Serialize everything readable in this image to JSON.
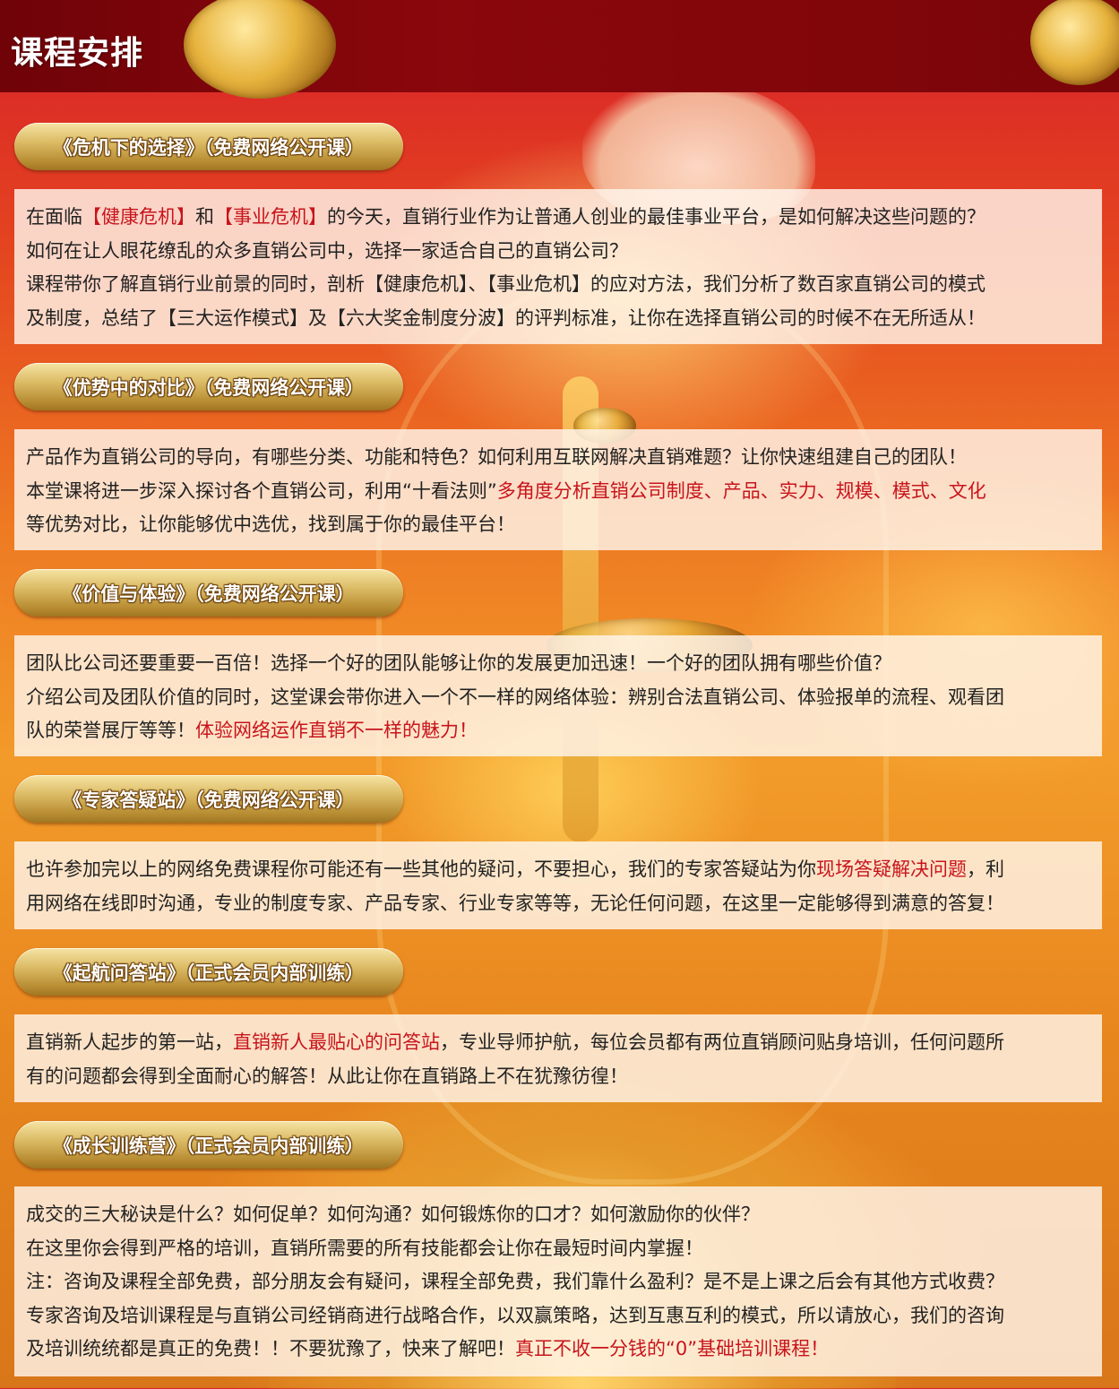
{
  "header": {
    "title": "课程安排"
  },
  "courses": [
    {
      "title": "《危机下的选择》（免费网络公开课）",
      "lines": [
        [
          {
            "t": "在面临"
          },
          {
            "t": "【健康危机】",
            "hl": true
          },
          {
            "t": "和"
          },
          {
            "t": "【事业危机】",
            "hl": true
          },
          {
            "t": "的今天，直销行业作为让普通人创业的最佳事业平台，是如何解决这些问题的？"
          }
        ],
        [
          {
            "t": "如何在让人眼花缭乱的众多直销公司中，选择一家适合自己的直销公司？"
          }
        ],
        [
          {
            "t": "课程带你了解直销行业前景的同时，剖析【健康危机】、【事业危机】的应对方法，我们分析了数百家直销公司的模式"
          }
        ],
        [
          {
            "t": "及制度，总结了【三大运作模式】及【六大奖金制度分波】的评判标准，让你在选择直销公司的时候不在无所适从！"
          }
        ]
      ]
    },
    {
      "title": "《优势中的对比》（免费网络公开课）",
      "lines": [
        [
          {
            "t": "产品作为直销公司的导向，有哪些分类、功能和特色？如何利用互联网解决直销难题？让你快速组建自己的团队！"
          }
        ],
        [
          {
            "t": "本堂课将进一步深入探讨各个直销公司，利用“十看法则”"
          },
          {
            "t": "多角度分析直销公司制度、产品、实力、规模、模式、文化",
            "hl": true
          }
        ],
        [
          {
            "t": "等优势对比，让你能够优中选优，找到属于你的最佳平台！"
          }
        ]
      ]
    },
    {
      "title": "《价值与体验》（免费网络公开课）",
      "lines": [
        [
          {
            "t": "团队比公司还要重要一百倍！选择一个好的团队能够让你的发展更加迅速！一个好的团队拥有哪些价值？"
          }
        ],
        [
          {
            "t": "介绍公司及团队价值的同时，这堂课会带你进入一个不一样的网络体验：辨别合法直销公司、体验报单的流程、观看团"
          }
        ],
        [
          {
            "t": "队的荣誉展厅等等！"
          },
          {
            "t": "体验网络运作直销不一样的魅力！",
            "hl": true
          }
        ]
      ]
    },
    {
      "title": "《专家答疑站》（免费网络公开课）",
      "lines": [
        [
          {
            "t": "也许参加完以上的网络免费课程你可能还有一些其他的疑问，不要担心，我们的专家答疑站为你"
          },
          {
            "t": "现场答疑解决问题",
            "hl": true
          },
          {
            "t": "，利"
          }
        ],
        [
          {
            "t": "用网络在线即时沟通，专业的制度专家、产品专家、行业专家等等，无论任何问题，在这里一定能够得到满意的答复！"
          }
        ]
      ]
    },
    {
      "title": "《起航问答站》（正式会员内部训练）",
      "lines": [
        [
          {
            "t": "直销新人起步的第一站，"
          },
          {
            "t": "直销新人最贴心的问答站",
            "hl": true
          },
          {
            "t": "，专业导师护航，每位会员都有两位直销顾问贴身培训，任何问题所"
          }
        ],
        [
          {
            "t": "有的问题都会得到全面耐心的解答！从此让你在直销路上不在犹豫彷徨！"
          }
        ]
      ]
    },
    {
      "title": "《成长训练营》（正式会员内部训练）",
      "lines": [
        [
          {
            "t": "成交的三大秘诀是什么？如何促单？如何沟通？如何锻炼你的口才？如何激励你的伙伴？"
          }
        ],
        [
          {
            "t": "在这里你会得到严格的培训，直销所需要的所有技能都会让你在最短时间内掌握！"
          }
        ],
        [
          {
            "t": "注：咨询及课程全部免费，部分朋友会有疑问，课程全部免费，我们靠什么盈利？是不是上课之后会有其他方式收费？"
          }
        ],
        [
          {
            "t": "专家咨询及培训课程是与直销公司经销商进行战略合作，以双赢策略，达到互惠互利的模式，所以请放心，我们的咨询"
          }
        ],
        [
          {
            "t": "及培训统统都是真正的免费！！不要犹豫了，快来了解吧！"
          },
          {
            "t": "真正不收一分钱的“0”基础培训课程！",
            "hl": true
          }
        ]
      ]
    }
  ]
}
